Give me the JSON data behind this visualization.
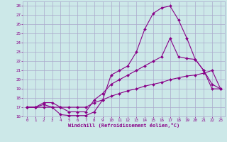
{
  "background_color": "#cce8e8",
  "line_color": "#880088",
  "grid_color": "#aaaacc",
  "xlabel": "Windchill (Refroidissement éolien,°C)",
  "ylim": [
    16,
    28.5
  ],
  "xlim": [
    -0.5,
    23.5
  ],
  "yticks": [
    16,
    17,
    18,
    19,
    20,
    21,
    22,
    23,
    24,
    25,
    26,
    27,
    28
  ],
  "xticks": [
    0,
    1,
    2,
    3,
    4,
    5,
    6,
    7,
    8,
    9,
    10,
    11,
    12,
    13,
    14,
    15,
    16,
    17,
    18,
    19,
    20,
    21,
    22,
    23
  ],
  "line1_x": [
    0,
    1,
    2,
    3,
    4,
    5,
    6,
    7,
    8,
    9,
    10,
    11,
    12,
    13,
    14,
    15,
    16,
    17,
    18,
    19,
    20,
    21,
    22,
    23
  ],
  "line1_y": [
    17.0,
    17.0,
    17.3,
    17.0,
    16.2,
    16.1,
    16.1,
    16.1,
    16.5,
    17.8,
    20.5,
    21.0,
    21.5,
    23.0,
    25.5,
    27.2,
    27.8,
    28.0,
    26.5,
    24.5,
    22.2,
    21.0,
    19.0,
    19.0
  ],
  "line2_x": [
    0,
    1,
    2,
    3,
    4,
    5,
    6,
    7,
    8,
    9,
    10,
    11,
    12,
    13,
    14,
    15,
    16,
    17,
    18,
    19,
    20,
    21,
    22,
    23
  ],
  "line2_y": [
    17.0,
    17.0,
    17.0,
    17.0,
    17.0,
    17.0,
    17.0,
    17.0,
    17.5,
    17.8,
    18.2,
    18.5,
    18.8,
    19.0,
    19.3,
    19.5,
    19.7,
    20.0,
    20.2,
    20.4,
    20.5,
    20.7,
    21.0,
    19.0
  ],
  "line3_x": [
    0,
    1,
    2,
    3,
    4,
    5,
    6,
    7,
    8,
    9,
    10,
    11,
    12,
    13,
    14,
    15,
    16,
    17,
    18,
    19,
    20,
    21,
    22,
    23
  ],
  "line3_y": [
    17.0,
    17.0,
    17.5,
    17.5,
    17.0,
    16.5,
    16.5,
    16.5,
    17.8,
    18.5,
    19.5,
    20.0,
    20.5,
    21.0,
    21.5,
    22.0,
    22.5,
    24.5,
    22.5,
    22.3,
    22.2,
    21.0,
    19.5,
    19.0
  ]
}
